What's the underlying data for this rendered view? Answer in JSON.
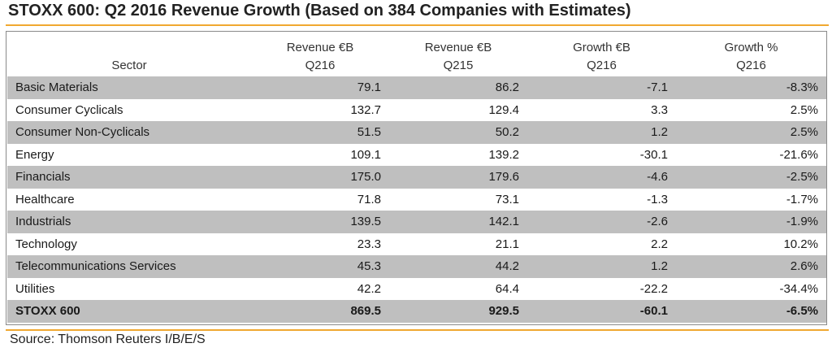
{
  "title": "STOXX 600: Q2 2016 Revenue Growth (Based on 384 Companies with Estimates)",
  "source": "Source: Thomson Reuters I/B/E/S",
  "colors": {
    "rule": "#f0a830",
    "shade": "#bfbfbf"
  },
  "chart_data": {
    "type": "table",
    "title": "STOXX 600: Q2 2016 Revenue Growth (Based on 384 Companies with Estimates)",
    "header_row1": [
      "",
      "Revenue €B",
      "Revenue €B",
      "Growth €B",
      "Growth %"
    ],
    "header_row2": [
      "Sector",
      "Q216",
      "Q215",
      "Q216",
      "Q216"
    ],
    "rows": [
      [
        "Basic Materials",
        "79.1",
        "86.2",
        "-7.1",
        "-8.3%"
      ],
      [
        "Consumer Cyclicals",
        "132.7",
        "129.4",
        "3.3",
        "2.5%"
      ],
      [
        "Consumer Non-Cyclicals",
        "51.5",
        "50.2",
        "1.2",
        "2.5%"
      ],
      [
        "Energy",
        "109.1",
        "139.2",
        "-30.1",
        "-21.6%"
      ],
      [
        "Financials",
        "175.0",
        "179.6",
        "-4.6",
        "-2.5%"
      ],
      [
        "Healthcare",
        "71.8",
        "73.1",
        "-1.3",
        "-1.7%"
      ],
      [
        "Industrials",
        "139.5",
        "142.1",
        "-2.6",
        "-1.9%"
      ],
      [
        "Technology",
        "23.3",
        "21.1",
        "2.2",
        "10.2%"
      ],
      [
        "Telecommunications Services",
        "45.3",
        "44.2",
        "1.2",
        "2.6%"
      ],
      [
        "Utilities",
        "42.2",
        "64.4",
        "-22.2",
        "-34.4%"
      ]
    ],
    "total": [
      "STOXX 600",
      "869.5",
      "929.5",
      "-60.1",
      "-6.5%"
    ],
    "source": "Source: Thomson Reuters I/B/E/S"
  }
}
